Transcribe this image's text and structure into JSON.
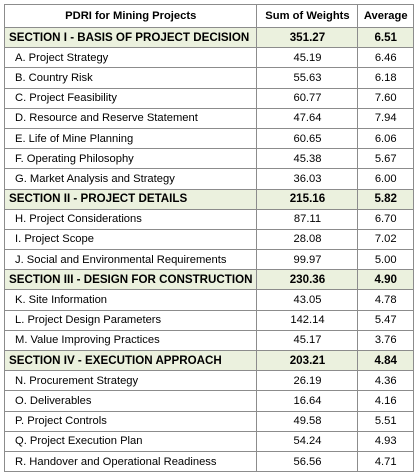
{
  "table": {
    "headers": [
      "PDRI for Mining Projects",
      "Sum of Weights",
      "Average"
    ],
    "section_fill": "#EBF1DE",
    "border_color": "#8C8C8C",
    "sections": [
      {
        "title": "SECTION I - BASIS OF PROJECT DECISION",
        "sum": "351.27",
        "avg": "6.51",
        "items": [
          {
            "label": "A. Project Strategy",
            "sum": "45.19",
            "avg": "6.46"
          },
          {
            "label": "B. Country Risk",
            "sum": "55.63",
            "avg": "6.18"
          },
          {
            "label": "C. Project Feasibility",
            "sum": "60.77",
            "avg": "7.60"
          },
          {
            "label": "D. Resource and Reserve Statement",
            "sum": "47.64",
            "avg": "7.94"
          },
          {
            "label": "E. Life of Mine Planning",
            "sum": "60.65",
            "avg": "6.06"
          },
          {
            "label": "F. Operating Philosophy",
            "sum": "45.38",
            "avg": "5.67"
          },
          {
            "label": "G. Market Analysis and Strategy",
            "sum": "36.03",
            "avg": "6.00"
          }
        ]
      },
      {
        "title": "SECTION II - PROJECT DETAILS",
        "sum": "215.16",
        "avg": "5.82",
        "items": [
          {
            "label": "H. Project Considerations",
            "sum": "87.11",
            "avg": "6.70"
          },
          {
            "label": "I. Project Scope",
            "sum": "28.08",
            "avg": "7.02"
          },
          {
            "label": "J. Social and Environmental Requirements",
            "sum": "99.97",
            "avg": "5.00"
          }
        ]
      },
      {
        "title": "SECTION III - DESIGN FOR CONSTRUCTION",
        "sum": "230.36",
        "avg": "4.90",
        "items": [
          {
            "label": "K. Site Information",
            "sum": "43.05",
            "avg": "4.78"
          },
          {
            "label": "L. Project Design Parameters",
            "sum": "142.14",
            "avg": "5.47"
          },
          {
            "label": "M. Value Improving Practices",
            "sum": "45.17",
            "avg": "3.76"
          }
        ]
      },
      {
        "title": "SECTION IV - EXECUTION APPROACH",
        "sum": "203.21",
        "avg": "4.84",
        "items": [
          {
            "label": "N. Procurement Strategy",
            "sum": "26.19",
            "avg": "4.36"
          },
          {
            "label": "O. Deliverables",
            "sum": "16.64",
            "avg": "4.16"
          },
          {
            "label": "P. Project Controls",
            "sum": "49.58",
            "avg": "5.51"
          },
          {
            "label": "Q. Project Execution Plan",
            "sum": "54.24",
            "avg": "4.93"
          },
          {
            "label": "R. Handover and Operational Readiness",
            "sum": "56.56",
            "avg": "4.71"
          }
        ]
      }
    ]
  }
}
